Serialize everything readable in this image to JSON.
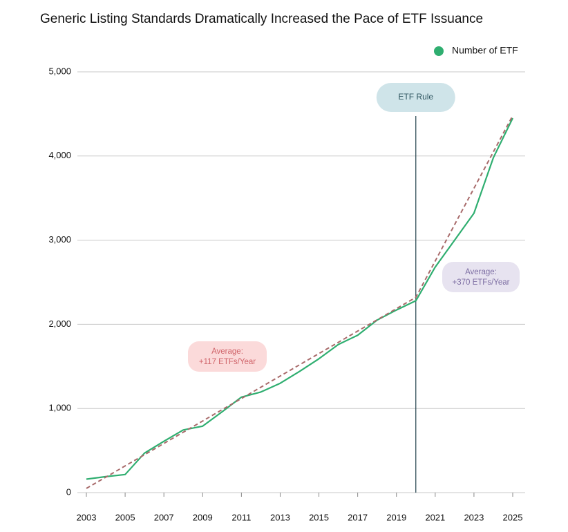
{
  "chart_data": {
    "type": "line",
    "title": "Generic Listing Standards Dramatically Increased the Pace of ETF Issuance",
    "x": [
      2003,
      2004,
      2005,
      2006,
      2007,
      2008,
      2009,
      2010,
      2011,
      2012,
      2013,
      2014,
      2015,
      2016,
      2017,
      2018,
      2019,
      2020,
      2021,
      2022,
      2023,
      2024,
      2025
    ],
    "series": [
      {
        "name": "Number of ETF",
        "color": "#2fae70",
        "values": [
          160,
          190,
          215,
          470,
          610,
          745,
          790,
          960,
          1135,
          1195,
          1300,
          1440,
          1590,
          1760,
          1870,
          2050,
          2170,
          2280,
          2680,
          3000,
          3320,
          3980,
          4450
        ]
      }
    ],
    "trend": {
      "color": "#a86a6a",
      "x": [
        2003,
        2020,
        2025
      ],
      "values": [
        50,
        2320,
        4480
      ]
    },
    "xlim": [
      2003,
      2025
    ],
    "xticks": [
      2003,
      2005,
      2007,
      2009,
      2011,
      2013,
      2015,
      2017,
      2019,
      2021,
      2023,
      2025
    ],
    "ylim": [
      0,
      5000
    ],
    "yticks": [
      0,
      {
        "value": 1000,
        "label": "1,000"
      },
      {
        "value": 2000,
        "label": "2,000"
      },
      {
        "value": 3000,
        "label": "3,000"
      },
      {
        "value": 4000,
        "label": "4,000"
      },
      {
        "value": 5000,
        "label": "5,000"
      }
    ],
    "grid": true,
    "legend": "top-right",
    "rule": {
      "x": 2020,
      "label": "ETF Rule"
    },
    "annotations": [
      {
        "lines": [
          "Average:",
          "+117 ETFs/Year"
        ],
        "color": "#d0646a",
        "background": "#fbdada"
      },
      {
        "lines": [
          "Average:",
          "+370 ETFs/Year"
        ],
        "color": "#7d6ea3",
        "background": "#e7e3f0"
      }
    ]
  }
}
